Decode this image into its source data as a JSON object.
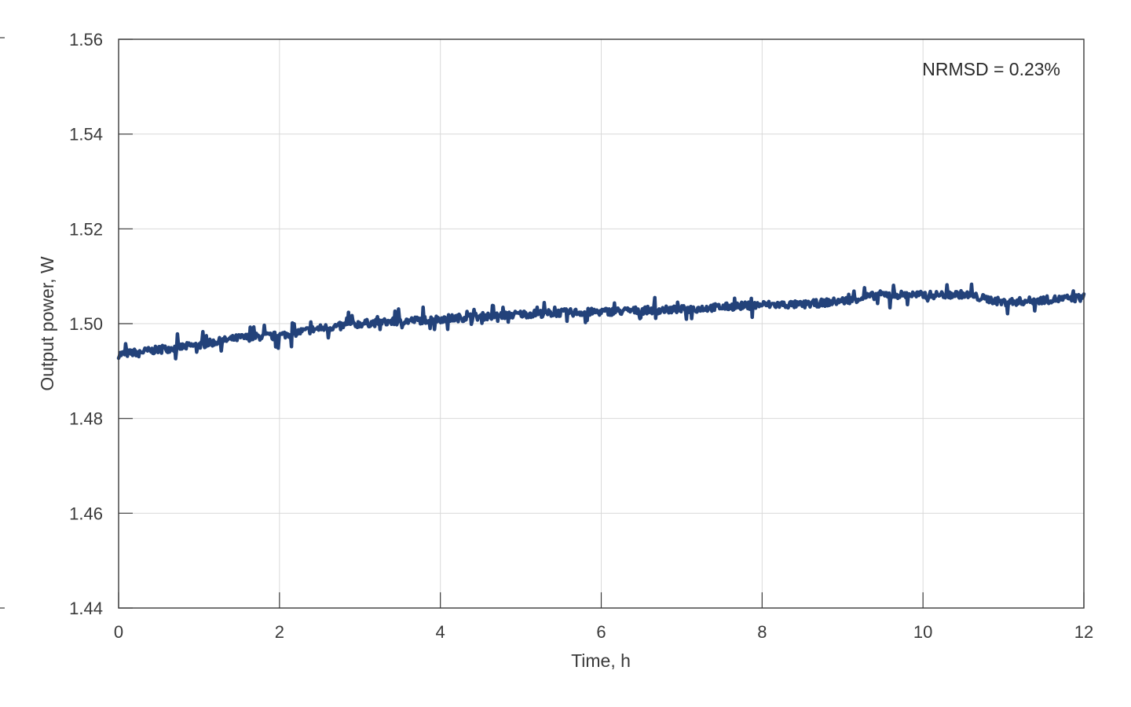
{
  "chart_data": {
    "type": "line",
    "xlabel": "Time, h",
    "ylabel": "Output power, W",
    "xlim": [
      0,
      12
    ],
    "ylim": [
      1.44,
      1.56
    ],
    "x_ticks": [
      0,
      2,
      4,
      6,
      8,
      10,
      12
    ],
    "x_tick_labels": [
      "0",
      "2",
      "4",
      "6",
      "8",
      "10",
      "12"
    ],
    "y_ticks": [
      1.44,
      1.46,
      1.48,
      1.5,
      1.52,
      1.54,
      1.56
    ],
    "y_tick_labels": [
      "1.44",
      "1.46",
      "1.48",
      "1.50",
      "1.52",
      "1.54",
      "1.56"
    ],
    "grid": true,
    "annotation": "NRMSD = 0.23%",
    "series": [
      {
        "color": "#23427a",
        "x": [
          0.0,
          0.5,
          1.0,
          1.5,
          2.0,
          2.5,
          3.0,
          3.5,
          4.0,
          4.5,
          5.0,
          5.5,
          6.0,
          6.5,
          7.0,
          7.5,
          8.0,
          8.5,
          9.0,
          9.5,
          10.0,
          10.5,
          11.0,
          11.5,
          12.0
        ],
        "values": [
          1.4935,
          1.4945,
          1.4955,
          1.497,
          1.4975,
          1.499,
          1.5,
          1.5005,
          1.501,
          1.5015,
          1.502,
          1.5023,
          1.5025,
          1.5028,
          1.503,
          1.5035,
          1.504,
          1.504,
          1.5048,
          1.5062,
          1.506,
          1.5062,
          1.5045,
          1.505,
          1.5055
        ]
      }
    ]
  }
}
